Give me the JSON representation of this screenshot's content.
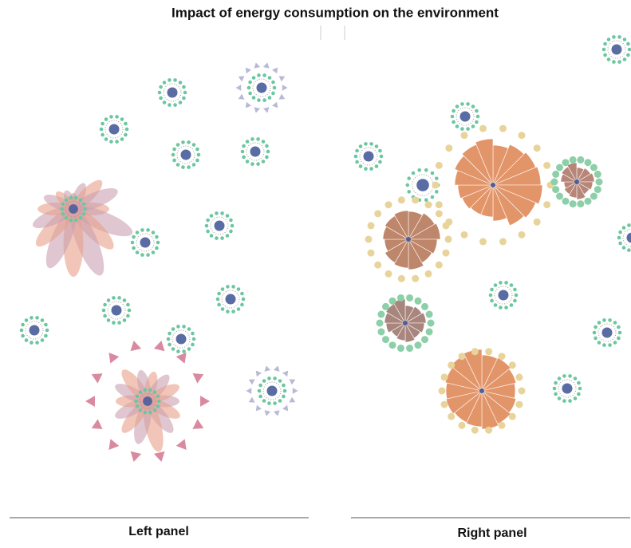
{
  "title": "Impact of energy consumption on the environment",
  "panels": [
    {
      "label": "Left panel"
    },
    {
      "label": "Right panel"
    }
  ]
}
